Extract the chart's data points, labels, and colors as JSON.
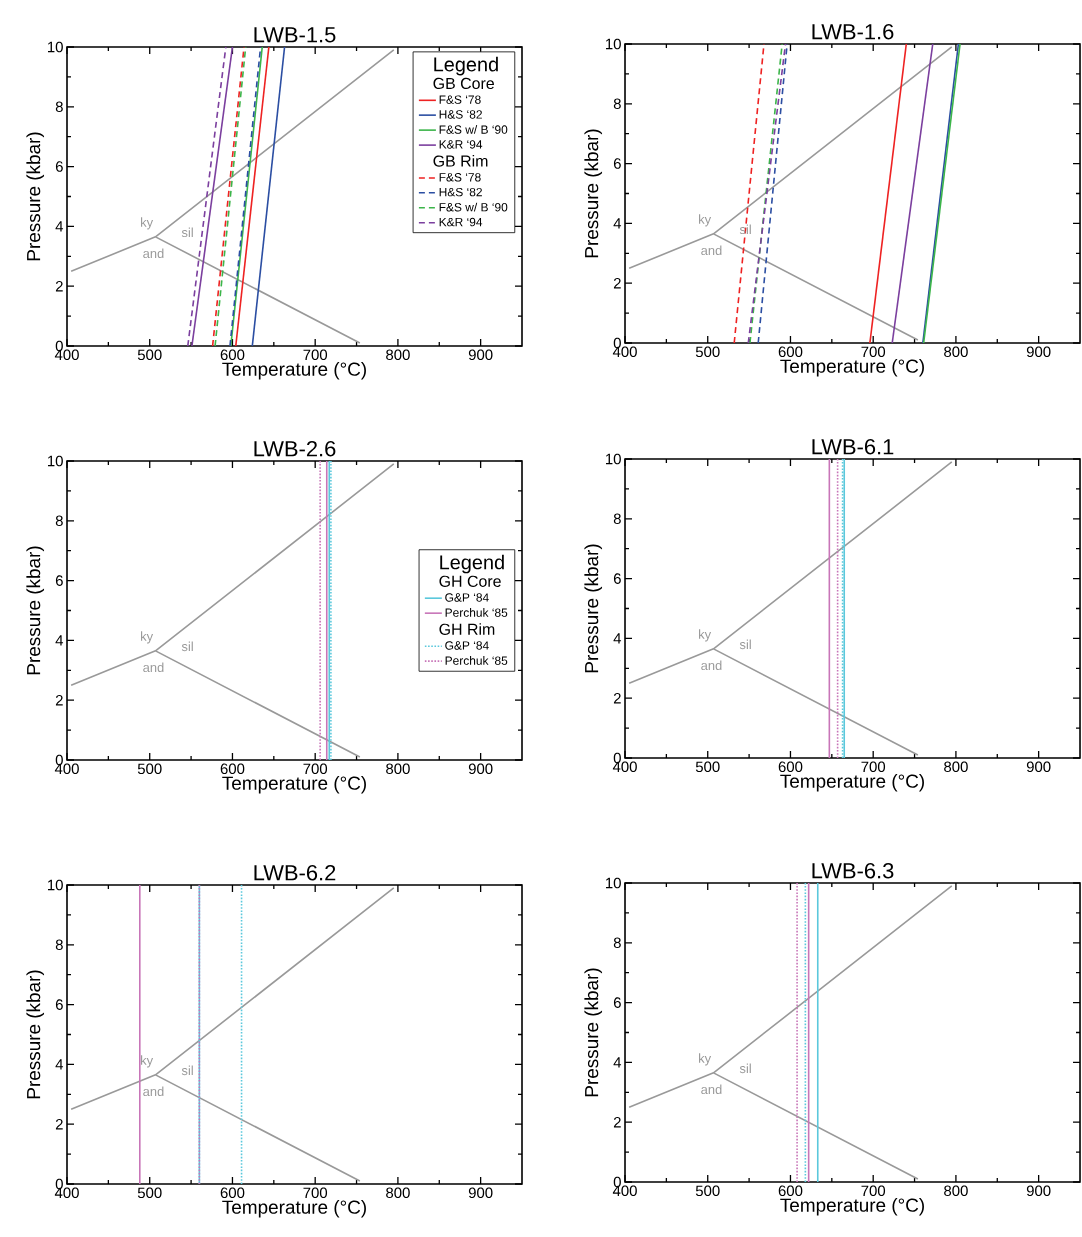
{
  "chart_data": [
    {
      "type": "line",
      "title": "LWB-1.5",
      "xlabel": "Temperature (°C)",
      "ylabel": "Pressure (kbar)",
      "xlim": [
        400,
        950
      ],
      "ylim": [
        0,
        10
      ],
      "xticks": [
        400,
        500,
        600,
        700,
        800,
        900
      ],
      "yticks": [
        0,
        2,
        4,
        6,
        8,
        10
      ],
      "marker": "none",
      "legend": "top right",
      "legend_title": "Legend",
      "annotations": [
        "GB Core",
        "GB Rim",
        "ky",
        "sil",
        "and"
      ],
      "series": [
        {
          "x": [
            405,
            507,
            795,
            600,
            507,
            754
          ],
          "values": [
            2.5,
            3.65,
            9.9,
            null,
            3.65,
            0.1
          ],
          "color": "#999999",
          "line_style": "solid"
        },
        {
          "name": "F&S ‘78",
          "x": [
            604,
            644
          ],
          "values": [
            0,
            10
          ],
          "color": "#ee2222",
          "line_style": "solid"
        },
        {
          "name": "H&S ‘82",
          "x": [
            624,
            663
          ],
          "values": [
            0,
            10
          ],
          "color": "#2b4ea2",
          "line_style": "solid"
        },
        {
          "name": "F&S w/ B ‘90",
          "x": [
            598,
            636
          ],
          "values": [
            0,
            10
          ],
          "color": "#3cb54a",
          "line_style": "solid"
        },
        {
          "name": "K&R ‘94",
          "x": [
            551,
            600
          ],
          "values": [
            0,
            10
          ],
          "color": "#7b3f9e",
          "line_style": "solid"
        },
        {
          "name": "F&S ‘78",
          "x": [
            576,
            614
          ],
          "values": [
            0,
            10
          ],
          "color": "#ee2222",
          "line_style": "dashed"
        },
        {
          "name": "H&S ‘82",
          "x": [
            597,
            634
          ],
          "values": [
            0,
            10
          ],
          "color": "#2b4ea2",
          "line_style": "dashed"
        },
        {
          "name": "F&S w/ B ‘90",
          "x": [
            579,
            616
          ],
          "values": [
            0,
            10
          ],
          "color": "#3cb54a",
          "line_style": "dashed"
        },
        {
          "name": "K&R ‘94",
          "x": [
            546,
            592
          ],
          "values": [
            0,
            10
          ],
          "color": "#7b3f9e",
          "line_style": "dashed"
        }
      ]
    },
    {
      "type": "line",
      "title": "LWB-1.6",
      "xlabel": "Temperature (°C)",
      "ylabel": "Pressure (kbar)",
      "xlim": [
        400,
        950
      ],
      "ylim": [
        0,
        10
      ],
      "xticks": [
        400,
        500,
        600,
        700,
        800,
        900
      ],
      "yticks": [
        0,
        2,
        4,
        6,
        8,
        10
      ],
      "marker": "none",
      "annotations": [
        "ky",
        "sil",
        "and"
      ],
      "series": [
        {
          "x": [
            405,
            507,
            795,
            600,
            507,
            754
          ],
          "values": [
            2.5,
            3.65,
            9.9,
            null,
            3.65,
            0.1
          ],
          "color": "#999999",
          "line_style": "solid"
        },
        {
          "x": [
            696,
            740
          ],
          "values": [
            0,
            10
          ],
          "color": "#ee2222",
          "line_style": "solid"
        },
        {
          "x": [
            760,
            803
          ],
          "values": [
            0,
            10
          ],
          "color": "#2b4ea2",
          "line_style": "solid"
        },
        {
          "x": [
            761,
            805
          ],
          "values": [
            0,
            10
          ],
          "color": "#3cb54a",
          "line_style": "solid"
        },
        {
          "x": [
            723,
            772
          ],
          "values": [
            0,
            10
          ],
          "color": "#7b3f9e",
          "line_style": "solid"
        },
        {
          "x": [
            532,
            568
          ],
          "values": [
            0,
            10
          ],
          "color": "#ee2222",
          "line_style": "dashed"
        },
        {
          "x": [
            561,
            596
          ],
          "values": [
            0,
            10
          ],
          "color": "#2b4ea2",
          "line_style": "dashed"
        },
        {
          "x": [
            551,
            590
          ],
          "values": [
            0,
            10
          ],
          "color": "#3cb54a",
          "line_style": "dashed"
        },
        {
          "x": [
            549,
            594
          ],
          "values": [
            0,
            10
          ],
          "color": "#7b3f9e",
          "line_style": "dashed"
        }
      ]
    },
    {
      "type": "line",
      "title": "LWB-2.6",
      "xlabel": "Temperature (°C)",
      "ylabel": "Pressure (kbar)",
      "xlim": [
        400,
        950
      ],
      "ylim": [
        0,
        10
      ],
      "xticks": [
        400,
        500,
        600,
        700,
        800,
        900
      ],
      "yticks": [
        0,
        2,
        4,
        6,
        8,
        10
      ],
      "marker": "none",
      "legend": "right",
      "legend_title": "Legend",
      "annotations": [
        "GH Core",
        "GH Rim",
        "ky",
        "sil",
        "and"
      ],
      "series": [
        {
          "x": [
            405,
            507,
            795,
            600,
            507,
            754
          ],
          "values": [
            2.5,
            3.65,
            9.9,
            null,
            3.65,
            0.1
          ],
          "color": "#999999",
          "line_style": "solid"
        },
        {
          "name": "G&P ‘84",
          "x": [
            717,
            717
          ],
          "values": [
            0,
            10
          ],
          "color": "#5bc8dc",
          "line_style": "solid"
        },
        {
          "name": "Perchuk ‘85",
          "x": [
            714,
            714
          ],
          "values": [
            0,
            10
          ],
          "color": "#c875b8",
          "line_style": "solid"
        },
        {
          "name": "G&P ‘84",
          "x": [
            719,
            719
          ],
          "values": [
            0,
            10
          ],
          "color": "#5bc8dc",
          "line_style": "dotted"
        },
        {
          "name": "Perchuk ‘85",
          "x": [
            706,
            706
          ],
          "values": [
            0,
            10
          ],
          "color": "#c875b8",
          "line_style": "dotted"
        }
      ]
    },
    {
      "type": "line",
      "title": "LWB-6.1",
      "xlabel": "Temperature (°C)",
      "ylabel": "Pressure (kbar)",
      "xlim": [
        400,
        950
      ],
      "ylim": [
        0,
        10
      ],
      "xticks": [
        400,
        500,
        600,
        700,
        800,
        900
      ],
      "yticks": [
        0,
        2,
        4,
        6,
        8,
        10
      ],
      "marker": "none",
      "annotations": [
        "ky",
        "sil",
        "and"
      ],
      "series": [
        {
          "x": [
            405,
            507,
            795,
            600,
            507,
            754
          ],
          "values": [
            2.5,
            3.65,
            9.9,
            null,
            3.65,
            0.1
          ],
          "color": "#999999",
          "line_style": "solid"
        },
        {
          "x": [
            665,
            665
          ],
          "values": [
            0,
            10
          ],
          "color": "#5bc8dc",
          "line_style": "solid"
        },
        {
          "x": [
            647,
            647
          ],
          "values": [
            0,
            10
          ],
          "color": "#c875b8",
          "line_style": "solid"
        },
        {
          "x": [
            663,
            663
          ],
          "values": [
            0,
            10
          ],
          "color": "#5bc8dc",
          "line_style": "dotted"
        },
        {
          "x": [
            657,
            657
          ],
          "values": [
            0,
            10
          ],
          "color": "#c875b8",
          "line_style": "dotted"
        }
      ]
    },
    {
      "type": "line",
      "title": "LWB-6.2",
      "xlabel": "Temperature (°C)",
      "ylabel": "Pressure (kbar)",
      "xlim": [
        400,
        950
      ],
      "ylim": [
        0,
        10
      ],
      "xticks": [
        400,
        500,
        600,
        700,
        800,
        900
      ],
      "yticks": [
        0,
        2,
        4,
        6,
        8,
        10
      ],
      "marker": "none",
      "annotations": [
        "ky",
        "sil",
        "and"
      ],
      "series": [
        {
          "x": [
            405,
            507,
            795,
            600,
            507,
            754
          ],
          "values": [
            2.5,
            3.65,
            9.9,
            null,
            3.65,
            0.1
          ],
          "color": "#999999",
          "line_style": "solid"
        },
        {
          "x": [
            560,
            560
          ],
          "values": [
            0,
            10
          ],
          "color": "#5bc8dc",
          "line_style": "solid"
        },
        {
          "x": [
            488,
            488
          ],
          "values": [
            0,
            10
          ],
          "color": "#c875b8",
          "line_style": "solid"
        },
        {
          "x": [
            611,
            611
          ],
          "values": [
            0,
            10
          ],
          "color": "#5bc8dc",
          "line_style": "dotted"
        },
        {
          "x": [
            560,
            560
          ],
          "values": [
            0,
            10
          ],
          "color": "#c875b8",
          "line_style": "dotted"
        }
      ]
    },
    {
      "type": "line",
      "title": "LWB-6.3",
      "xlabel": "Temperature (°C)",
      "ylabel": "Pressure (kbar)",
      "xlim": [
        400,
        950
      ],
      "ylim": [
        0,
        10
      ],
      "xticks": [
        400,
        500,
        600,
        700,
        800,
        900
      ],
      "yticks": [
        0,
        2,
        4,
        6,
        8,
        10
      ],
      "marker": "none",
      "annotations": [
        "ky",
        "sil",
        "and"
      ],
      "series": [
        {
          "x": [
            405,
            507,
            795,
            600,
            507,
            754
          ],
          "values": [
            2.5,
            3.65,
            9.9,
            null,
            3.65,
            0.1
          ],
          "color": "#999999",
          "line_style": "solid"
        },
        {
          "x": [
            633,
            633
          ],
          "values": [
            0,
            10
          ],
          "color": "#5bc8dc",
          "line_style": "solid"
        },
        {
          "x": [
            622,
            622
          ],
          "values": [
            0,
            10
          ],
          "color": "#c875b8",
          "line_style": "solid"
        },
        {
          "x": [
            618,
            618
          ],
          "values": [
            0,
            10
          ],
          "color": "#5bc8dc",
          "line_style": "dotted"
        },
        {
          "x": [
            608,
            608
          ],
          "values": [
            0,
            10
          ],
          "color": "#c875b8",
          "line_style": "dotted"
        }
      ]
    }
  ]
}
